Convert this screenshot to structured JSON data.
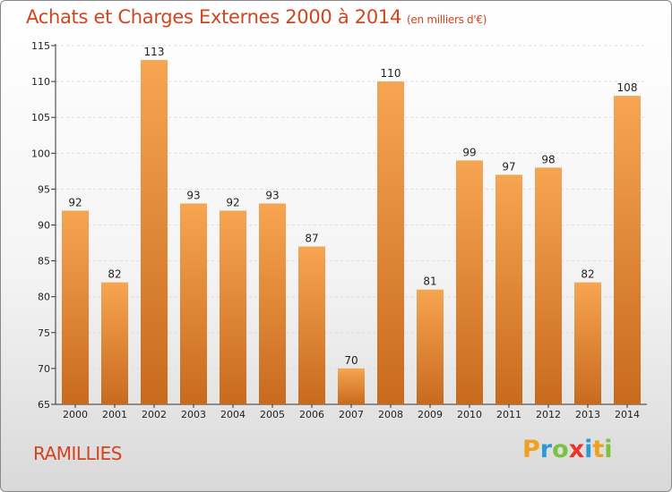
{
  "chart_data": {
    "type": "bar",
    "title": "Achats et Charges Externes 2000 à 2014",
    "subtitle": "(en milliers d'€)",
    "categories": [
      "2000",
      "2001",
      "2002",
      "2003",
      "2004",
      "2005",
      "2006",
      "2007",
      "2008",
      "2009",
      "2010",
      "2011",
      "2012",
      "2013",
      "2014"
    ],
    "values": [
      92,
      82,
      113,
      93,
      92,
      93,
      87,
      70,
      110,
      81,
      99,
      97,
      98,
      82,
      108
    ],
    "ylim": [
      65,
      115
    ],
    "yticks": [
      65,
      70,
      75,
      80,
      85,
      90,
      95,
      100,
      105,
      110,
      115
    ],
    "grid": true,
    "bar_color": "#f08a2a"
  },
  "location": "RAMILLIES",
  "logo": {
    "letters": [
      "P",
      "r",
      "o",
      "x",
      "i",
      "t",
      "i"
    ],
    "colors": [
      "#f0a020",
      "#2a9bd6",
      "#7cc242",
      "#e8342a",
      "#2a9bd6",
      "#f0a020",
      "#7cc242"
    ]
  }
}
